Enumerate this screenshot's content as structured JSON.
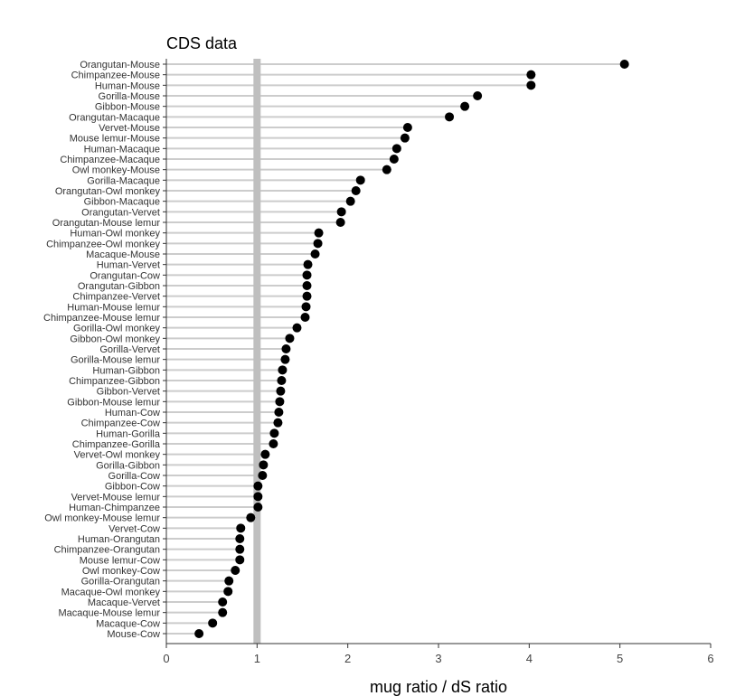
{
  "chart_data": {
    "type": "scatter",
    "title": "CDS data",
    "xlabel": "mug ratio / dS ratio",
    "ylabel": "",
    "xlim": [
      0,
      6
    ],
    "xticks": [
      0,
      1,
      2,
      3,
      4,
      5,
      6
    ],
    "reference_line_x": 1,
    "categories": [
      "Orangutan-Mouse",
      "Chimpanzee-Mouse",
      "Human-Mouse",
      "Gorilla-Mouse",
      "Gibbon-Mouse",
      "Orangutan-Macaque",
      "Vervet-Mouse",
      "Mouse lemur-Mouse",
      "Human-Macaque",
      "Chimpanzee-Macaque",
      "Owl monkey-Mouse",
      "Gorilla-Macaque",
      "Orangutan-Owl monkey",
      "Gibbon-Macaque",
      "Orangutan-Vervet",
      "Orangutan-Mouse lemur",
      "Human-Owl monkey",
      "Chimpanzee-Owl monkey",
      "Macaque-Mouse",
      "Human-Vervet",
      "Orangutan-Cow",
      "Orangutan-Gibbon",
      "Chimpanzee-Vervet",
      "Human-Mouse lemur",
      "Chimpanzee-Mouse lemur",
      "Gorilla-Owl monkey",
      "Gibbon-Owl monkey",
      "Gorilla-Vervet",
      "Gorilla-Mouse lemur",
      "Human-Gibbon",
      "Chimpanzee-Gibbon",
      "Gibbon-Vervet",
      "Gibbon-Mouse lemur",
      "Human-Cow",
      "Chimpanzee-Cow",
      "Human-Gorilla",
      "Chimpanzee-Gorilla",
      "Vervet-Owl monkey",
      "Gorilla-Gibbon",
      "Gorilla-Cow",
      "Gibbon-Cow",
      "Vervet-Mouse lemur",
      "Human-Chimpanzee",
      "Owl monkey-Mouse lemur",
      "Vervet-Cow",
      "Human-Orangutan",
      "Chimpanzee-Orangutan",
      "Mouse lemur-Cow",
      "Owl monkey-Cow",
      "Gorilla-Orangutan",
      "Macaque-Owl monkey",
      "Macaque-Vervet",
      "Macaque-Mouse lemur",
      "Macaque-Cow",
      "Mouse-Cow"
    ],
    "values": [
      5.05,
      4.02,
      4.02,
      3.43,
      3.29,
      3.12,
      2.66,
      2.63,
      2.54,
      2.51,
      2.43,
      2.14,
      2.09,
      2.03,
      1.93,
      1.92,
      1.68,
      1.67,
      1.64,
      1.56,
      1.55,
      1.55,
      1.55,
      1.54,
      1.53,
      1.44,
      1.36,
      1.32,
      1.31,
      1.28,
      1.27,
      1.26,
      1.25,
      1.24,
      1.23,
      1.19,
      1.18,
      1.09,
      1.07,
      1.06,
      1.01,
      1.01,
      1.01,
      0.93,
      0.82,
      0.81,
      0.81,
      0.81,
      0.76,
      0.69,
      0.68,
      0.62,
      0.62,
      0.51,
      0.36
    ],
    "grid": false,
    "legend": "none",
    "colors": {
      "point": "#000000",
      "segment": "#cccccc",
      "reference_line": "#bfbfbf",
      "axis": "#333333"
    }
  }
}
